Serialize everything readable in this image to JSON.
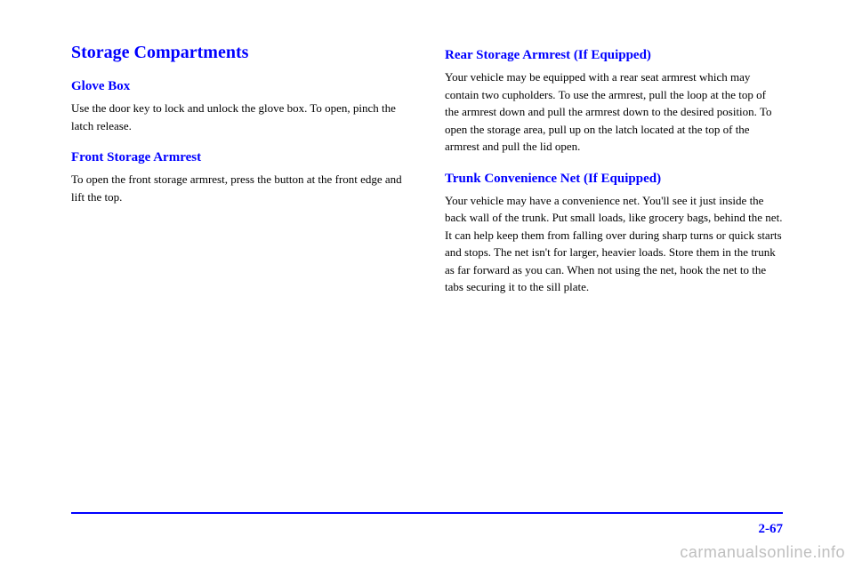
{
  "colors": {
    "heading": "#0000ff",
    "body": "#000000",
    "rule": "#0000ff",
    "watermark": "#bfbfbf",
    "background": "#ffffff"
  },
  "left": {
    "title": "Storage Compartments",
    "section1": {
      "heading": "Glove Box",
      "body": "Use the door key to lock and unlock the glove box. To open, pinch the latch release."
    },
    "section2": {
      "heading": "Front Storage Armrest",
      "body": "To open the front storage armrest, press the button at the front edge and lift the top."
    }
  },
  "right": {
    "section1": {
      "heading": "Rear Storage Armrest (If Equipped)",
      "body": "Your vehicle may be equipped with a rear seat armrest which may contain two cupholders. To use the armrest, pull the loop at the top of the armrest down and pull the armrest down to the desired position. To open the storage area, pull up on the latch located at the top of the armrest and pull the lid open."
    },
    "section2": {
      "heading": "Trunk Convenience Net (If Equipped)",
      "body": "Your vehicle may have a convenience net. You'll see it just inside the back wall of the trunk. Put small loads, like grocery bags, behind the net. It can help keep them from falling over during sharp turns or quick starts and stops. The net isn't for larger, heavier loads. Store them in the trunk as far forward as you can. When not using the net, hook the net to the tabs securing it to the sill plate."
    }
  },
  "page_number": "2-67",
  "watermark": "carmanualsonline.info"
}
